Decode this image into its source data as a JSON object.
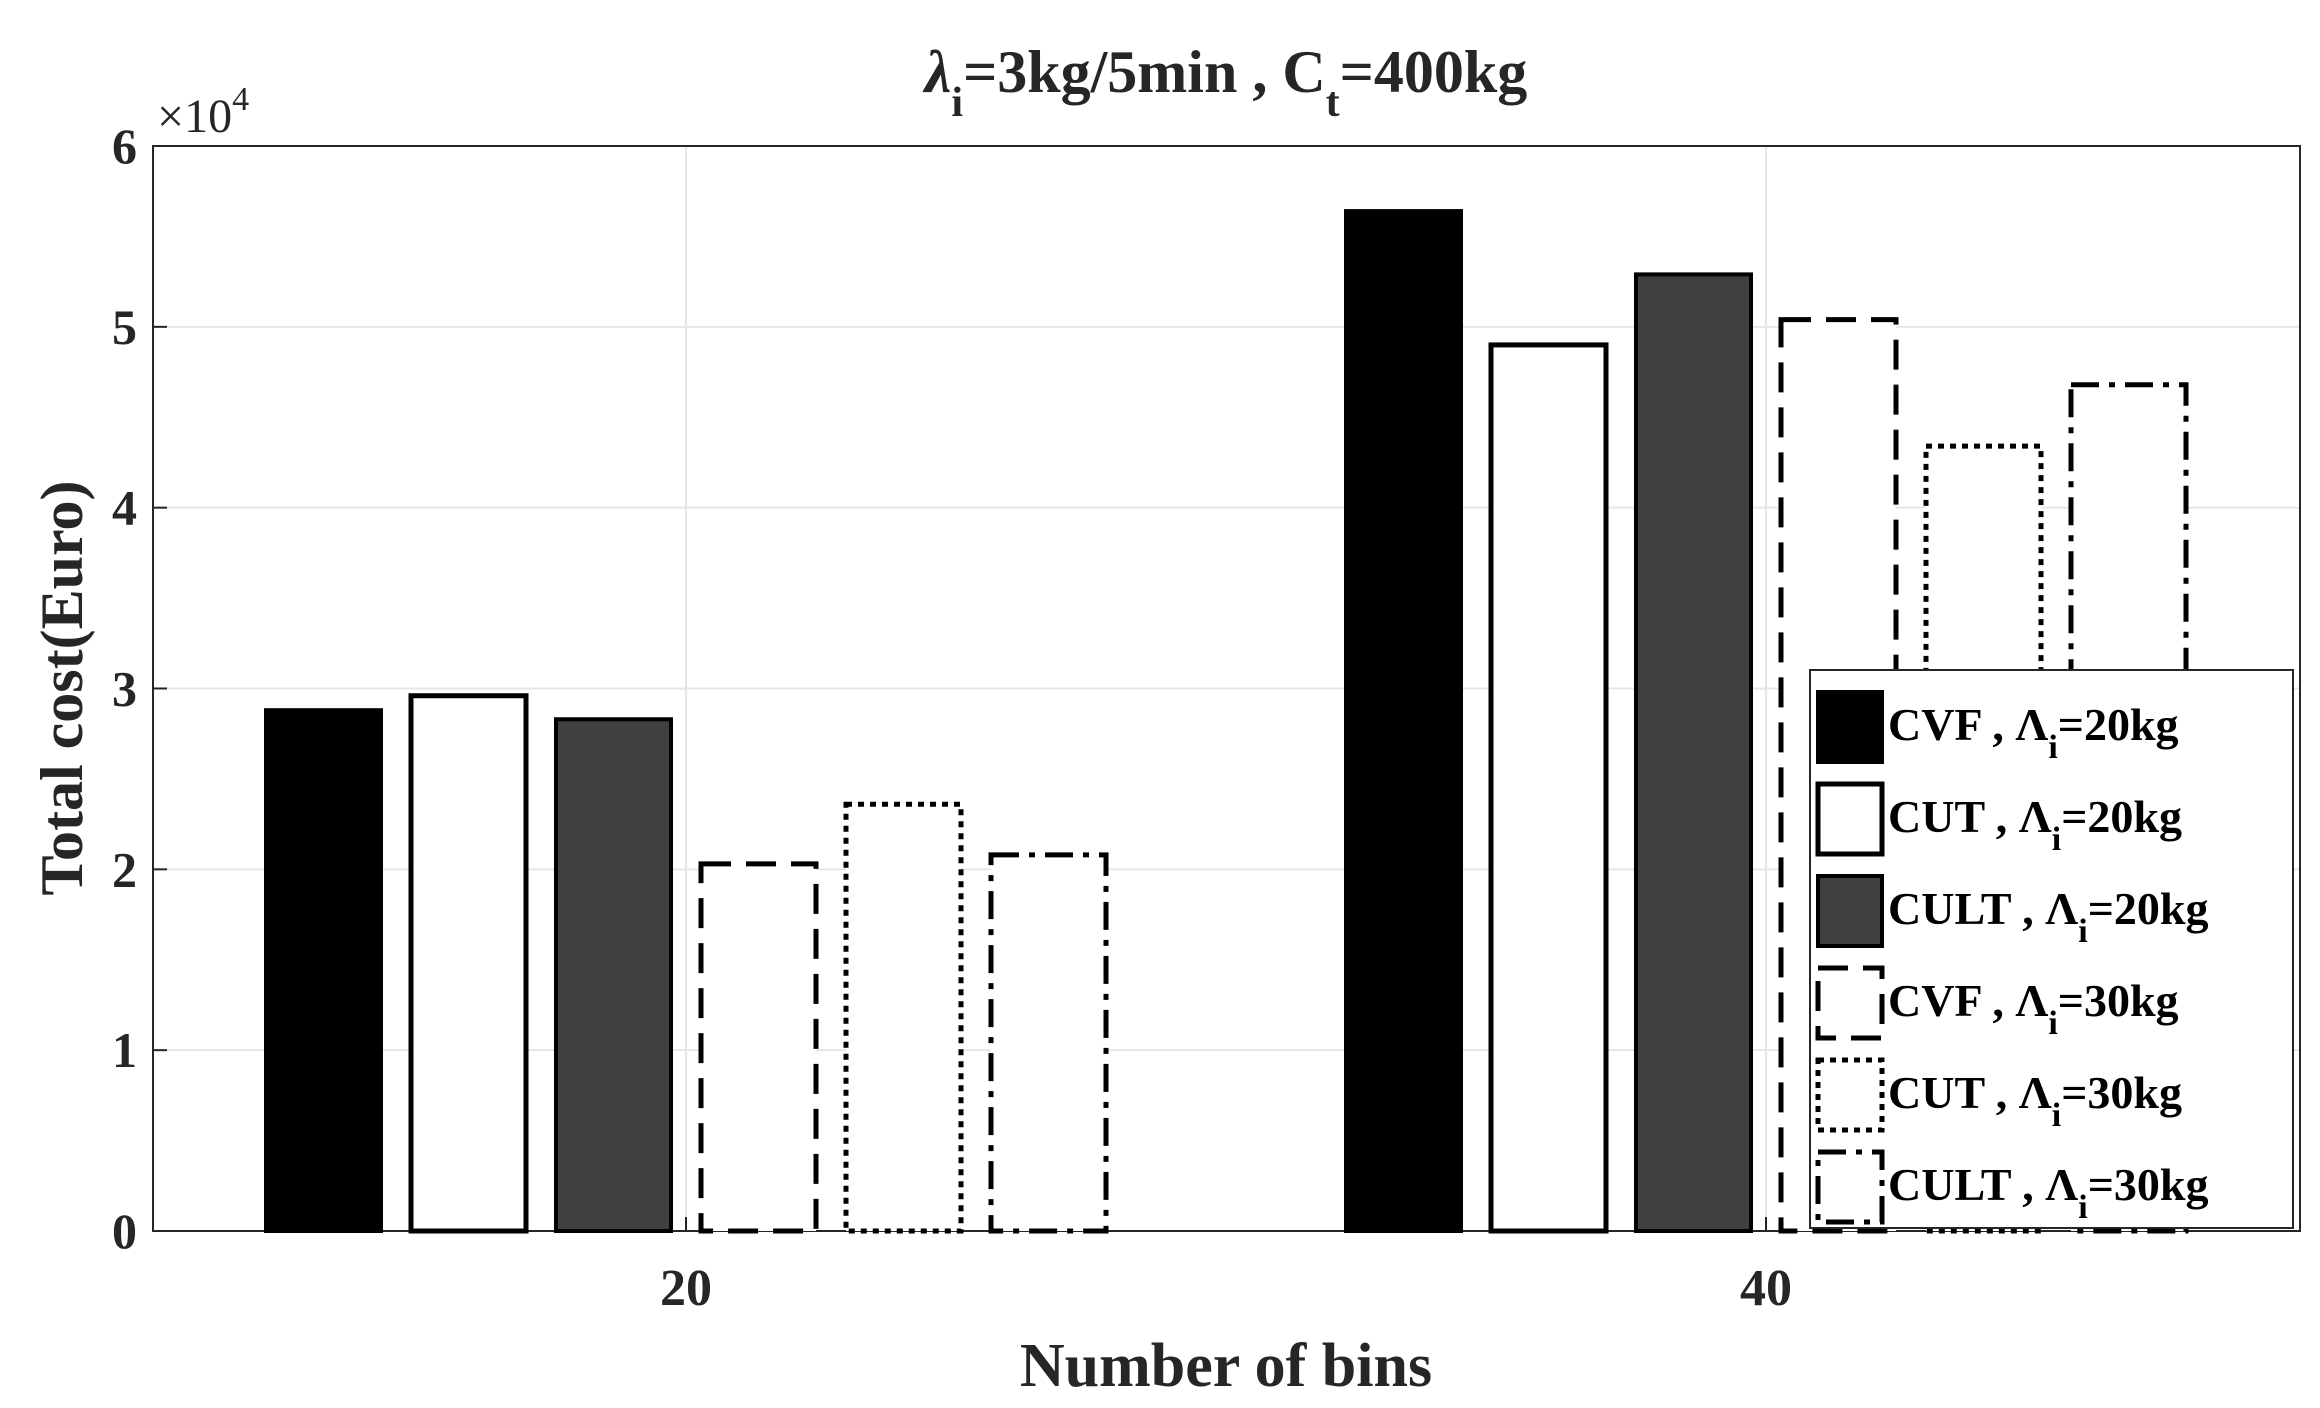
{
  "chart_data": {
    "type": "bar",
    "title_parts": [
      "λ",
      "i",
      "=3kg/5min , C",
      "t",
      "=400kg"
    ],
    "xlabel": "Number of bins",
    "ylabel": "Total cost(Euro)",
    "exponent_base": "×10",
    "exponent_power": "4",
    "categories": [
      "20",
      "40"
    ],
    "ylim": [
      0,
      6
    ],
    "yticks": [
      "0",
      "1",
      "2",
      "3",
      "4",
      "5",
      "6"
    ],
    "grid": true,
    "legend_position": "bottom-right",
    "series": [
      {
        "name": "CVF , Λi=20kg",
        "label_main": "CVF , Λ",
        "label_sub": "i",
        "label_tail": "=20kg",
        "style": "solid-black",
        "values": [
          2.88,
          5.64
        ]
      },
      {
        "name": "CUT , Λi=20kg",
        "label_main": "CUT , Λ",
        "label_sub": "i",
        "label_tail": "=20kg",
        "style": "white-solid",
        "values": [
          2.96,
          4.9
        ]
      },
      {
        "name": "CULT , Λi=20kg",
        "label_main": "CULT , Λ",
        "label_sub": "i",
        "label_tail": "=20kg",
        "style": "solid-gray",
        "values": [
          2.83,
          5.29
        ]
      },
      {
        "name": "CVF , Λi=30kg",
        "label_main": "CVF , Λ",
        "label_sub": "i",
        "label_tail": "=30kg",
        "style": "dashed",
        "values": [
          2.03,
          5.04
        ]
      },
      {
        "name": "CUT , Λi=30kg",
        "label_main": "CUT , Λ",
        "label_sub": "i",
        "label_tail": "=30kg",
        "style": "dotted",
        "values": [
          2.36,
          4.34
        ]
      },
      {
        "name": "CULT , Λi=30kg",
        "label_main": "CULT , Λ",
        "label_sub": "i",
        "label_tail": "=30kg",
        "style": "dashdot",
        "values": [
          2.08,
          4.68
        ]
      }
    ],
    "colors": {
      "solid_black": "#000000",
      "solid_gray": "#404040",
      "grid": "#e6e6e6",
      "axis": "#262626",
      "text": "#262626"
    }
  }
}
